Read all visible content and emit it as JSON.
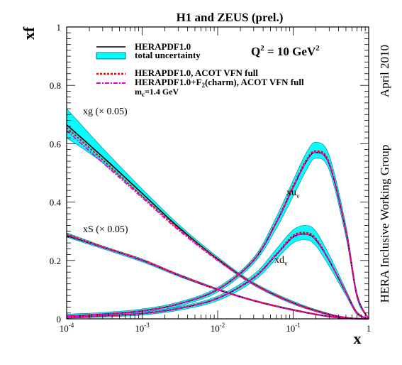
{
  "chart_data": {
    "type": "line",
    "title": "H1 and ZEUS (prel.)",
    "xlabel": "x",
    "ylabel": "xf",
    "xscale": "log",
    "xlim": [
      0.0001,
      1
    ],
    "ylim": [
      0,
      1
    ],
    "x_ticks": [
      {
        "value": 0.0001,
        "base": "10",
        "exp": "-4"
      },
      {
        "value": 0.001,
        "base": "10",
        "exp": "-3"
      },
      {
        "value": 0.01,
        "base": "10",
        "exp": "-2"
      },
      {
        "value": 0.1,
        "base": "10",
        "exp": "-1"
      },
      {
        "value": 1,
        "base": "1",
        "exp": ""
      }
    ],
    "y_ticks": [
      {
        "value": 0,
        "label": "0"
      },
      {
        "value": 0.2,
        "label": "0.2"
      },
      {
        "value": 0.4,
        "label": "0.4"
      },
      {
        "value": 0.6,
        "label": "0.6"
      },
      {
        "value": 0.8,
        "label": "0.8"
      },
      {
        "value": 1,
        "label": "1"
      }
    ],
    "q2_label": {
      "prefix": "Q",
      "sup": "2",
      "middle": " = 10 GeV",
      "sup2": "2"
    },
    "side_labels": [
      "April 2010",
      "HERA Inclusive Working Group"
    ],
    "legend": {
      "placement": "top-left",
      "entries": [
        {
          "kind": "central",
          "label": "HERAPDF1.0",
          "color": "#000000"
        },
        {
          "kind": "band",
          "label": "total uncertainty",
          "color": "#00FFFF"
        },
        {
          "kind": "acot",
          "label": "HERAPDF1.0, ACOT VFN full",
          "color": "#FF0000"
        },
        {
          "kind": "charm",
          "label_pre": "HERAPDF1.0+F",
          "label_sub": "2",
          "label_post": "(charm), ACOT VFN full",
          "color": "#E000E0"
        }
      ],
      "mc_note": {
        "pre": "m",
        "sub": "c",
        "post": "=1.4 GeV"
      }
    },
    "curve_labels": [
      {
        "id": "xg",
        "text": "xg (× 0.05)"
      },
      {
        "id": "xS",
        "text": "xS (× 0.05)"
      },
      {
        "id": "xuv",
        "text": "xu",
        "sub": "v"
      },
      {
        "id": "xdv",
        "text": "xd",
        "sub": "v"
      }
    ],
    "series": [
      {
        "name": "xg (× 0.05)",
        "x": [
          0.0001,
          0.0003,
          0.001,
          0.003,
          0.01,
          0.03,
          0.1,
          0.3,
          0.6,
          1
        ],
        "central": [
          0.665,
          0.555,
          0.43,
          0.315,
          0.205,
          0.12,
          0.055,
          0.015,
          0.002,
          0
        ],
        "band_low": [
          0.62,
          0.535,
          0.42,
          0.31,
          0.2,
          0.115,
          0.05,
          0.012,
          0.001,
          0
        ],
        "band_high": [
          0.72,
          0.585,
          0.445,
          0.325,
          0.212,
          0.125,
          0.06,
          0.018,
          0.003,
          0
        ],
        "acot": [
          0.655,
          0.545,
          0.42,
          0.31,
          0.205,
          0.12,
          0.055,
          0.015,
          0.002,
          0
        ],
        "charm": [
          0.645,
          0.535,
          0.415,
          0.305,
          0.2,
          0.118,
          0.053,
          0.014,
          0.002,
          0
        ]
      },
      {
        "name": "xS (× 0.05)",
        "x": [
          0.0001,
          0.0003,
          0.001,
          0.003,
          0.01,
          0.03,
          0.1,
          0.3,
          0.6,
          1
        ],
        "central": [
          0.285,
          0.245,
          0.2,
          0.15,
          0.1,
          0.062,
          0.03,
          0.008,
          0.001,
          0
        ],
        "band_low": [
          0.28,
          0.24,
          0.195,
          0.146,
          0.098,
          0.06,
          0.028,
          0.006,
          0.001,
          0
        ],
        "band_high": [
          0.295,
          0.25,
          0.205,
          0.154,
          0.104,
          0.065,
          0.033,
          0.01,
          0.002,
          0
        ],
        "acot": [
          0.29,
          0.247,
          0.202,
          0.152,
          0.101,
          0.063,
          0.031,
          0.008,
          0.001,
          0
        ],
        "charm": [
          0.288,
          0.245,
          0.2,
          0.15,
          0.1,
          0.062,
          0.03,
          0.008,
          0.001,
          0
        ]
      },
      {
        "name": "xuv",
        "x": [
          0.0001,
          0.0003,
          0.001,
          0.003,
          0.01,
          0.03,
          0.06,
          0.1,
          0.15,
          0.2,
          0.3,
          0.5,
          0.7,
          1
        ],
        "central": [
          0.01,
          0.016,
          0.027,
          0.05,
          0.1,
          0.2,
          0.33,
          0.45,
          0.54,
          0.57,
          0.53,
          0.3,
          0.08,
          0
        ],
        "band_low": [
          0.005,
          0.01,
          0.02,
          0.043,
          0.092,
          0.19,
          0.31,
          0.42,
          0.51,
          0.55,
          0.51,
          0.28,
          0.07,
          0
        ],
        "band_high": [
          0.016,
          0.022,
          0.034,
          0.057,
          0.108,
          0.21,
          0.35,
          0.475,
          0.57,
          0.605,
          0.56,
          0.32,
          0.09,
          0
        ],
        "acot": [
          0.01,
          0.016,
          0.028,
          0.051,
          0.101,
          0.202,
          0.333,
          0.455,
          0.545,
          0.575,
          0.535,
          0.3,
          0.08,
          0
        ],
        "charm": [
          0.01,
          0.016,
          0.027,
          0.05,
          0.1,
          0.2,
          0.33,
          0.45,
          0.54,
          0.57,
          0.53,
          0.3,
          0.08,
          0
        ]
      },
      {
        "name": "xdv",
        "x": [
          0.0001,
          0.0003,
          0.001,
          0.003,
          0.01,
          0.03,
          0.06,
          0.1,
          0.15,
          0.2,
          0.3,
          0.5,
          0.7,
          1
        ],
        "central": [
          0.005,
          0.01,
          0.018,
          0.035,
          0.07,
          0.14,
          0.22,
          0.28,
          0.29,
          0.27,
          0.2,
          0.09,
          0.02,
          0
        ],
        "band_low": [
          0.002,
          0.006,
          0.013,
          0.029,
          0.062,
          0.13,
          0.205,
          0.26,
          0.27,
          0.25,
          0.18,
          0.08,
          0.015,
          0
        ],
        "band_high": [
          0.009,
          0.014,
          0.023,
          0.041,
          0.078,
          0.152,
          0.24,
          0.305,
          0.32,
          0.3,
          0.22,
          0.1,
          0.025,
          0
        ],
        "acot": [
          0.005,
          0.01,
          0.019,
          0.036,
          0.071,
          0.142,
          0.222,
          0.285,
          0.295,
          0.275,
          0.2,
          0.09,
          0.02,
          0
        ],
        "charm": [
          0.005,
          0.01,
          0.018,
          0.035,
          0.07,
          0.14,
          0.22,
          0.28,
          0.29,
          0.27,
          0.2,
          0.09,
          0.02,
          0
        ]
      }
    ],
    "colors": {
      "band": "#00FFFF",
      "central": "#000000",
      "acot": "#FF0000",
      "charm": "#E000E0"
    }
  }
}
